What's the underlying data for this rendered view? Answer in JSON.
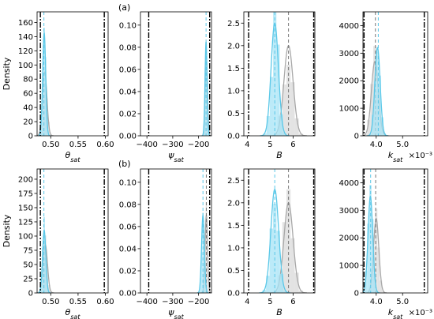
{
  "panel_labels": [
    "(a)",
    "(b)"
  ],
  "colors": {
    "posterior": "#5bc8e8",
    "posterior_fill": "#a6e3f5",
    "prior": "#a8a8a8",
    "prior_fill": "#d9d9d9",
    "bounds": "#000000"
  },
  "chart_data": [
    {
      "type": "area",
      "row": "a",
      "xlabel": "θ_sat",
      "ylabel": "Density",
      "xlim": [
        0.475,
        0.605
      ],
      "ylim": [
        0,
        175
      ],
      "xticks": [
        0.5,
        0.55,
        0.6
      ],
      "xticklabels": [
        "0.50",
        "0.55",
        "0.60"
      ],
      "yticks": [
        0,
        20,
        40,
        60,
        80,
        100,
        120,
        140,
        160
      ],
      "yticklabels": [
        "0",
        "20",
        "40",
        "60",
        "80",
        "100",
        "120",
        "140",
        "160"
      ],
      "bounds": [
        0.481,
        0.598
      ],
      "series": [
        {
          "role": "prior",
          "mean": 0.489,
          "sd": 0.004,
          "peak": 90
        },
        {
          "role": "posterior",
          "mean": 0.488,
          "sd": 0.0028,
          "peak": 145,
          "mean_line": 0.4875
        }
      ]
    },
    {
      "type": "area",
      "row": "a",
      "xlabel": "ψ_sat",
      "ylabel": "",
      "xlim": [
        -425,
        -150
      ],
      "ylim": [
        0,
        0.112
      ],
      "xticks": [
        -400,
        -300,
        -200
      ],
      "xticklabels": [
        "−400",
        "−300",
        "−200"
      ],
      "yticks": [
        0,
        0.02,
        0.04,
        0.06,
        0.08,
        0.1
      ],
      "yticklabels": [
        "0.00",
        "0.02",
        "0.04",
        "0.06",
        "0.08",
        "0.10"
      ],
      "bounds": [
        -393,
        -157
      ],
      "series": [
        {
          "role": "prior",
          "mean": -170,
          "sd": 4.5,
          "peak": 0.07
        },
        {
          "role": "posterior",
          "mean": -171,
          "sd": 4.0,
          "peak": 0.085,
          "mean_line": -171
        }
      ]
    },
    {
      "type": "area",
      "row": "a",
      "xlabel": "B",
      "ylabel": "",
      "xlim": [
        3.85,
        6.95
      ],
      "ylim": [
        0,
        2.75
      ],
      "xticks": [
        4,
        5,
        6
      ],
      "xticklabels": [
        "4",
        "5",
        "6"
      ],
      "yticks": [
        0,
        0.5,
        1.0,
        1.5,
        2.0,
        2.5
      ],
      "yticklabels": [
        "0.0",
        "0.5",
        "1.0",
        "1.5",
        "2.0",
        "2.5"
      ],
      "bounds": [
        4.06,
        6.9
      ],
      "series": [
        {
          "role": "prior",
          "mean": 5.8,
          "sd": 0.2,
          "peak": 2.0,
          "mean_line": 5.8
        },
        {
          "role": "posterior",
          "mean": 5.2,
          "sd": 0.16,
          "peak": 2.5,
          "mean_line": 5.2
        }
      ]
    },
    {
      "type": "area",
      "row": "a",
      "xlabel": "k_sat",
      "ylabel": "",
      "multiplier": "×10⁻³",
      "xlim": [
        3.5,
        5.95
      ],
      "ylim": [
        0,
        4500
      ],
      "xticks": [
        4.0,
        5.0
      ],
      "xticklabels": [
        "4.0",
        "5.0"
      ],
      "yticks": [
        0,
        1000,
        2000,
        3000,
        4000
      ],
      "yticklabels": [
        "0",
        "1000",
        "2000",
        "3000",
        "4000"
      ],
      "bounds": [
        3.54,
        5.82
      ],
      "series": [
        {
          "role": "prior",
          "mean": 3.95,
          "sd": 0.13,
          "peak": 2700,
          "mean_line": 3.97
        },
        {
          "role": "posterior",
          "mean": 4.05,
          "sd": 0.1,
          "peak": 3200,
          "mean_line": 4.08
        }
      ]
    },
    {
      "type": "area",
      "row": "b",
      "xlabel": "θ_sat",
      "ylabel": "Density",
      "xlim": [
        0.475,
        0.605
      ],
      "ylim": [
        0,
        218
      ],
      "xticks": [
        0.5,
        0.55,
        0.6
      ],
      "xticklabels": [
        "0.50",
        "0.55",
        "0.60"
      ],
      "yticks": [
        0,
        25,
        50,
        75,
        100,
        125,
        150,
        175,
        200
      ],
      "yticklabels": [
        "0",
        "25",
        "50",
        "75",
        "100",
        "125",
        "150",
        "175",
        "200"
      ],
      "bounds": [
        0.481,
        0.598
      ],
      "series": [
        {
          "role": "prior",
          "mean": 0.49,
          "sd": 0.004,
          "peak": 85
        },
        {
          "role": "posterior",
          "mean": 0.488,
          "sd": 0.003,
          "peak": 110,
          "mean_line": 0.4875
        }
      ]
    },
    {
      "type": "area",
      "row": "b",
      "xlabel": "ψ_sat",
      "ylabel": "",
      "xlim": [
        -425,
        -150
      ],
      "ylim": [
        0,
        0.112
      ],
      "xticks": [
        -400,
        -300,
        -200
      ],
      "xticklabels": [
        "−400",
        "−300",
        "−200"
      ],
      "yticks": [
        0,
        0.02,
        0.04,
        0.06,
        0.08,
        0.1
      ],
      "yticklabels": [
        "0.00",
        "0.02",
        "0.04",
        "0.06",
        "0.08",
        "0.10"
      ],
      "bounds": [
        -393,
        -157
      ],
      "series": [
        {
          "role": "prior",
          "mean": -170,
          "sd": 5,
          "peak": 0.07,
          "mean_line": -170
        },
        {
          "role": "posterior",
          "mean": -183,
          "sd": 5.5,
          "peak": 0.07,
          "mean_line": -183
        }
      ]
    },
    {
      "type": "area",
      "row": "b",
      "xlabel": "B",
      "ylabel": "",
      "xlim": [
        3.85,
        6.95
      ],
      "ylim": [
        0,
        2.75
      ],
      "xticks": [
        4,
        5,
        6
      ],
      "xticklabels": [
        "4",
        "5",
        "6"
      ],
      "yticks": [
        0,
        0.5,
        1.0,
        1.5,
        2.0,
        2.5
      ],
      "yticklabels": [
        "0.0",
        "0.5",
        "1.0",
        "1.5",
        "2.0",
        "2.5"
      ],
      "bounds": [
        4.06,
        6.9
      ],
      "series": [
        {
          "role": "prior",
          "mean": 5.8,
          "sd": 0.2,
          "peak": 2.0,
          "mean_line": 5.8
        },
        {
          "role": "posterior",
          "mean": 5.2,
          "sd": 0.17,
          "peak": 2.3,
          "mean_line": 5.2
        }
      ]
    },
    {
      "type": "area",
      "row": "b",
      "xlabel": "k_sat",
      "ylabel": "",
      "multiplier": "×10⁻³",
      "xlim": [
        3.5,
        5.95
      ],
      "ylim": [
        0,
        4500
      ],
      "xticks": [
        4.0,
        5.0
      ],
      "xticklabels": [
        "4.0",
        "5.0"
      ],
      "yticks": [
        0,
        1000,
        2000,
        3000,
        4000
      ],
      "yticklabels": [
        "0",
        "1000",
        "2000",
        "3000",
        "4000"
      ],
      "bounds": [
        3.54,
        5.82
      ],
      "series": [
        {
          "role": "prior",
          "mean": 4.0,
          "sd": 0.1,
          "peak": 2700,
          "mean_line": 3.98
        },
        {
          "role": "posterior",
          "mean": 3.78,
          "sd": 0.09,
          "peak": 3500,
          "mean_line": 3.79
        }
      ]
    }
  ]
}
